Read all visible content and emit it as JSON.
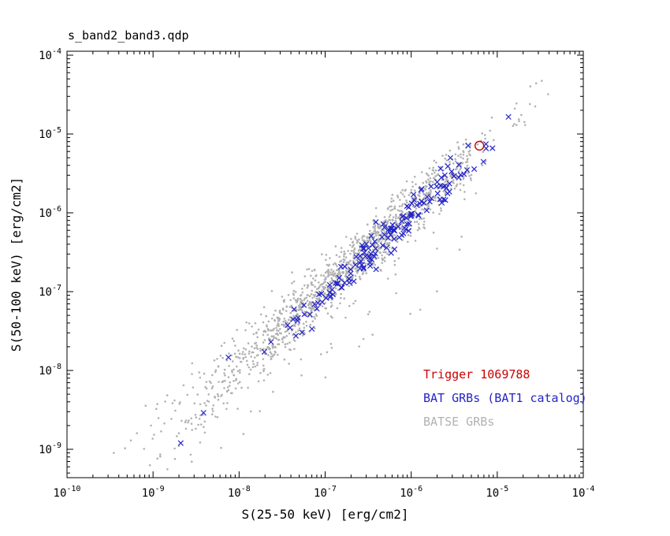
{
  "chart_data": {
    "type": "scatter",
    "title": "s_band2_band3.qdp",
    "xlabel": "S(25-50 keV) [erg/cm2]",
    "ylabel": "S(50-100 keV) [erg/cm2]",
    "x_scale": "log",
    "y_scale": "log",
    "x_log_range": [
      -10,
      -4
    ],
    "y_log_range": [
      -9.36,
      -3.95
    ],
    "x_tick_exponents": [
      -10,
      -9,
      -8,
      -7,
      -6,
      -5,
      -4
    ],
    "y_tick_exponents": [
      -9,
      -8,
      -7,
      -6,
      -5,
      -4
    ],
    "grid": false,
    "legend": {
      "position": "lower-right",
      "entries": [
        {
          "label": "Trigger 1069788",
          "color": "#cc0000"
        },
        {
          "label": "BAT GRBs (BAT1 catalog)",
          "color": "#2424c8"
        },
        {
          "label": "BATSE GRBs",
          "color": "#b2b2b2"
        }
      ]
    },
    "highlight": {
      "name": "Trigger 1069788",
      "marker": "open-circle",
      "color": "#cc0000",
      "x": 6.2e-06,
      "y": 7.1e-06
    },
    "series": [
      {
        "name": "BATSE GRBs",
        "marker": "dot",
        "color": "#b2b2b2",
        "count": 1450,
        "seed": 1234,
        "estimated_distribution": {
          "logx_mean": -6.7,
          "logx_sigma": 1.0,
          "logx_min": -9.6,
          "logx_max": -4.4,
          "offset": 0.03,
          "scatter_sigma": 0.17,
          "scatter_knee": -7.0,
          "scatter_extra": 0.07,
          "outlier_prob": 0.02,
          "suppress_above": -5.3,
          "suppress_prob": 0.25
        },
        "extra_points": [
          [
            3.9e-05,
            3.2e-05
          ],
          [
            2.4e-05,
            2.4e-05
          ],
          [
            1.6e-05,
            2.1e-05
          ],
          [
            6.5e-10,
            1.6e-09
          ],
          [
            3.5e-10,
            9e-10
          ],
          [
            2e-09,
            1.1e-09
          ]
        ]
      },
      {
        "name": "BAT GRBs (BAT1 catalog)",
        "marker": "x",
        "color": "#2424c8",
        "count": 160,
        "seed": 77,
        "estimated_distribution": {
          "logx_mean": -6.35,
          "logx_sigma": 0.72,
          "logx_min": -8.8,
          "logx_max": -5.0,
          "offset": -0.02,
          "scatter_sigma": 0.13,
          "scatter_knee": -7.5,
          "scatter_extra": 0.05,
          "outlier_prob": 0.0,
          "suppress_above": -5.5,
          "suppress_prob": 0.5
        },
        "extra_points": [
          [
            1.35e-05,
            1.65e-05
          ],
          [
            8.8e-06,
            6.6e-06
          ],
          [
            2.1e-09,
            1.2e-09
          ]
        ]
      }
    ]
  }
}
